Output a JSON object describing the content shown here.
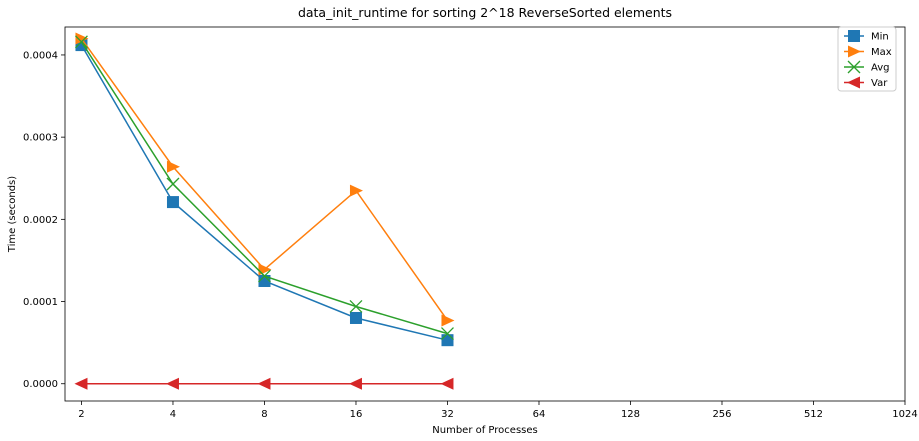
{
  "chart_data": {
    "type": "line",
    "title": "data_init_runtime for sorting 2^18 ReverseSorted elements",
    "xlabel": "Number of Processes",
    "ylabel": "Time (seconds)",
    "x_scale": "log2",
    "x_ticks": [
      2,
      4,
      8,
      16,
      32,
      64,
      128,
      256,
      512,
      1024
    ],
    "x_tick_labels": [
      "2",
      "4",
      "8",
      "16",
      "32",
      "64",
      "128",
      "256",
      "512",
      "1024"
    ],
    "y_ticks": [
      0.0,
      0.0001,
      0.0002,
      0.0003,
      0.0004
    ],
    "y_tick_labels": [
      "0.0000",
      "0.0001",
      "0.0002",
      "0.0003",
      "0.0004"
    ],
    "ylim": [
      -2.1e-05,
      0.000434
    ],
    "grid": false,
    "legend_position": "top-right",
    "x": [
      2,
      4,
      8,
      16,
      32
    ],
    "series": [
      {
        "name": "Min",
        "color": "#1f77b4",
        "marker": "square",
        "values": [
          0.000412,
          0.000221,
          0.000125,
          8e-05,
          5.3e-05
        ]
      },
      {
        "name": "Max",
        "color": "#ff7f0e",
        "marker": "triangle-right",
        "values": [
          0.00042,
          0.000264,
          0.000139,
          0.000235,
          7.7e-05
        ]
      },
      {
        "name": "Avg",
        "color": "#2ca02c",
        "marker": "x",
        "values": [
          0.000416,
          0.000243,
          0.000131,
          9.4e-05,
          6.1e-05
        ]
      },
      {
        "name": "Var",
        "color": "#d62728",
        "marker": "triangle-left",
        "values": [
          0.0,
          0.0,
          0.0,
          0.0,
          0.0
        ]
      }
    ]
  }
}
